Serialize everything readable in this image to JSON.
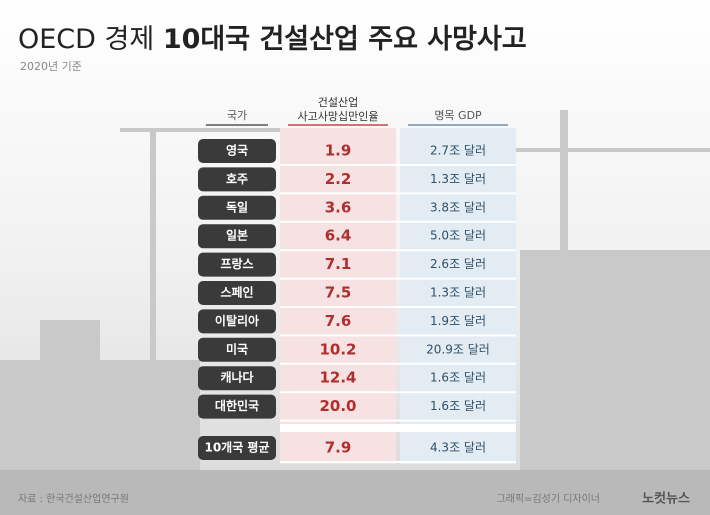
{
  "header": {
    "title_light": "OECD 경제",
    "title_bold": "10대국 건설산업 주요 사망사고",
    "subtitle": "2020년 기준"
  },
  "table": {
    "columns": [
      "국가",
      [
        "건설산업",
        "사고사망십만인율"
      ],
      "명목 GDP"
    ],
    "rows": [
      [
        "영국",
        "1.9",
        "2.7조 달러"
      ],
      [
        "호주",
        "2.2",
        "1.3조 달러"
      ],
      [
        "독일",
        "3.6",
        "3.8조 달러"
      ],
      [
        "일본",
        "6.4",
        "5.0조 달러"
      ],
      [
        "프랑스",
        "7.1",
        "2.6조 달러"
      ],
      [
        "스페인",
        "7.5",
        "1.3조 달러"
      ],
      [
        "이탈리아",
        "7.6",
        "1.9조 달러"
      ],
      [
        "미국",
        "10.2",
        "20.9조 달러"
      ],
      [
        "캐나다",
        "12.4",
        "1.6조 달러"
      ],
      [
        "대한민국",
        "20.0",
        "1.6조 달러"
      ]
    ],
    "average": [
      "10개국 평균",
      "7.9",
      "4.3조 달러"
    ]
  },
  "footer": {
    "source": "자료 : 한국건설산업연구원",
    "credit": "그래픽=김성기 디자이너",
    "logo": "노컷뉴스"
  }
}
